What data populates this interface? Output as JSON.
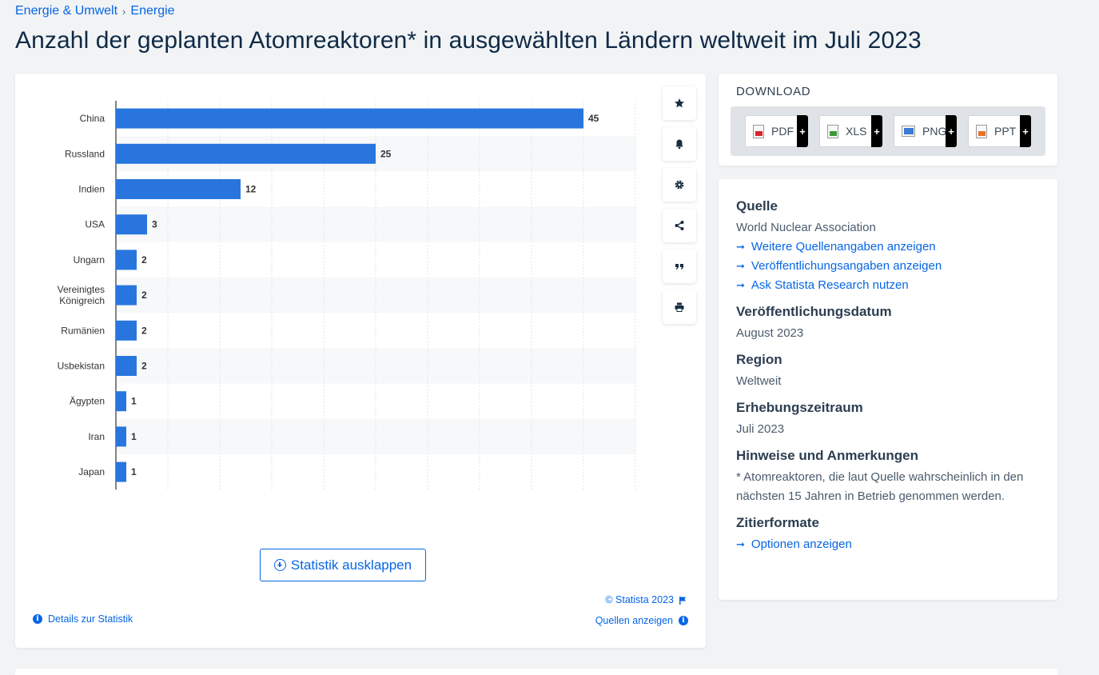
{
  "breadcrumb": {
    "items": [
      "Energie & Umwelt",
      "Energie"
    ],
    "separator": "›"
  },
  "page": {
    "title": "Anzahl der geplanten Atomreaktoren* in ausgewählten Ländern weltweit im Juli 2023"
  },
  "chart_data": {
    "type": "bar",
    "orientation": "horizontal",
    "categories": [
      "China",
      "Russland",
      "Indien",
      "USA",
      "Ungarn",
      "Vereinigtes Königreich",
      "Rumänien",
      "Usbekistan",
      "Ägypten",
      "Iran",
      "Japan"
    ],
    "category_lines": [
      [
        "China"
      ],
      [
        "Russland"
      ],
      [
        "Indien"
      ],
      [
        "USA"
      ],
      [
        "Ungarn"
      ],
      [
        "Vereinigtes",
        "Königreich"
      ],
      [
        "Rumänien"
      ],
      [
        "Usbekistan"
      ],
      [
        "Ägypten"
      ],
      [
        "Iran"
      ],
      [
        "Japan"
      ]
    ],
    "values": [
      45,
      25,
      12,
      3,
      2,
      2,
      2,
      2,
      1,
      1,
      1
    ],
    "xlim": [
      0,
      50
    ],
    "grid": true,
    "data_labels": true,
    "bar_color": "#2876dd",
    "title": "",
    "xlabel": "",
    "ylabel": ""
  },
  "tools": [
    "star-icon",
    "bell-icon",
    "gear-icon",
    "share-icon",
    "quote-icon",
    "print-icon"
  ],
  "chart_footer": {
    "expand_label": "Statistik ausklappen",
    "copyright": "© Statista 2023",
    "details_label": "Details zur Statistik",
    "sources_label": "Quellen anzeigen"
  },
  "download": {
    "title": "DOWNLOAD",
    "formats": [
      {
        "label": "PDF",
        "color": "#d9262b"
      },
      {
        "label": "XLS",
        "color": "#3d9a37"
      },
      {
        "label": "PNG",
        "color": "#3a7bd5"
      },
      {
        "label": "PPT",
        "color": "#e8722a"
      }
    ],
    "plus": "+"
  },
  "info": {
    "source_heading": "Quelle",
    "source_value": "World Nuclear Association",
    "source_links": [
      "Weitere Quellenangaben anzeigen",
      "Veröffentlichungsangaben anzeigen",
      "Ask Statista Research nutzen"
    ],
    "pubdate_heading": "Veröffentlichungsdatum",
    "pubdate_value": "August 2023",
    "region_heading": "Region",
    "region_value": "Weltweit",
    "period_heading": "Erhebungszeitraum",
    "period_value": "Juli 2023",
    "notes_heading": "Hinweise und Anmerkungen",
    "notes_value": "* Atomreaktoren, die laut Quelle wahrscheinlich in den nächsten 15 Jahren in Betrieb genommen werden.",
    "cite_heading": "Zitierformate",
    "cite_link": "Optionen anzeigen"
  },
  "colors": {
    "accent": "#0666e5",
    "bar": "#2876dd",
    "title": "#0f2a46"
  }
}
